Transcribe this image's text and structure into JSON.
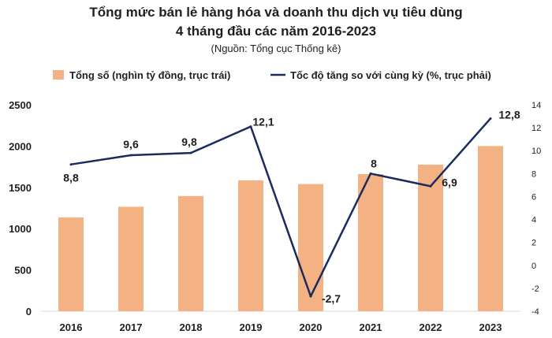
{
  "chart_data": {
    "type": "bar+line",
    "title_line1": "Tổng mức bán lẻ hàng hóa và doanh thu dịch vụ tiêu dùng",
    "title_line2": "4 tháng đầu các năm 2016-2023",
    "subtitle": "(Nguồn: Tổng cục Thống kê)",
    "categories": [
      "2016",
      "2017",
      "2018",
      "2019",
      "2020",
      "2021",
      "2022",
      "2023"
    ],
    "series": [
      {
        "name": "Tổng số (nghìn tỷ đồng, trục trái)",
        "type": "bar",
        "axis": "left",
        "color": "#f4b183",
        "values": [
          1135,
          1265,
          1395,
          1585,
          1540,
          1660,
          1775,
          2000
        ]
      },
      {
        "name": "Tốc độ tăng so với cùng kỳ (%, trục phải)",
        "type": "line",
        "axis": "right",
        "color": "#1a2b5e",
        "values": [
          8.8,
          9.6,
          9.8,
          12.1,
          -2.7,
          8,
          6.9,
          12.8
        ],
        "labels": [
          "8,8",
          "9,6",
          "9,8",
          "12,1",
          "-2,7",
          "8",
          "6,9",
          "12,8"
        ]
      }
    ],
    "y_left": {
      "ylim": [
        0,
        2500
      ],
      "ticks": [
        "0",
        "500",
        "1000",
        "1500",
        "2000",
        "2500"
      ]
    },
    "y_right": {
      "ylim": [
        -4,
        14
      ],
      "ticks": [
        "-4",
        "-2",
        "0",
        "2",
        "4",
        "6",
        "8",
        "10",
        "12",
        "14"
      ]
    },
    "grid": false,
    "legend_position": "top"
  }
}
